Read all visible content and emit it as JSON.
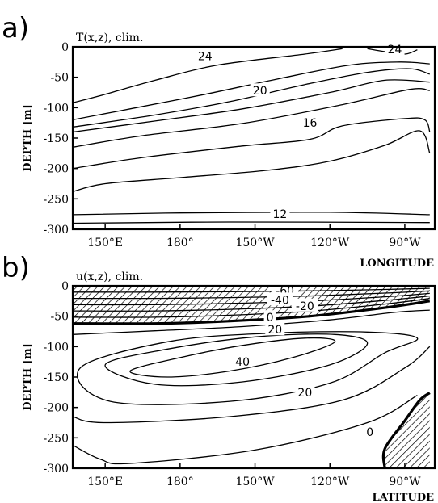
{
  "panel_a": {
    "letter": "a)"
  },
  "panel_b": {
    "letter": "b)"
  },
  "chart_data": [
    {
      "type": "contour",
      "title": "T(x,z),  clim.",
      "ylabel": "DEPTH [m]",
      "xlabel": "LONGITUDE",
      "x_tick_labels": [
        "150°E",
        "180°",
        "150°W",
        "120°W",
        "90°W"
      ],
      "y_ticks": [
        0,
        -50,
        -100,
        -150,
        -200,
        -250,
        -300
      ],
      "ylim": [
        -300,
        0
      ],
      "contour_labels": [
        {
          "text": "24",
          "lon": 190,
          "depth": -15
        },
        {
          "text": "24",
          "lon": 266,
          "depth": -4
        },
        {
          "text": "20",
          "lon": 212,
          "depth": -72
        },
        {
          "text": "16",
          "lon": 232,
          "depth": -125
        },
        {
          "text": "12",
          "lon": 220,
          "depth": -275
        }
      ],
      "isotherms": [
        {
          "level": 24,
          "points": [
            [
              137,
              -92
            ],
            [
              150,
              -78
            ],
            [
              170,
              -55
            ],
            [
              195,
              -30
            ],
            [
              230,
              -12
            ],
            [
              245,
              -3
            ]
          ]
        },
        {
          "level": 24,
          "points": [
            [
              255,
              -3
            ],
            [
              262,
              -8
            ],
            [
              270,
              -12
            ],
            [
              275,
              -5
            ]
          ]
        },
        {
          "level": 22,
          "points": [
            [
              137,
              -120
            ],
            [
              160,
              -102
            ],
            [
              190,
              -78
            ],
            [
              220,
              -52
            ],
            [
              248,
              -30
            ],
            [
              268,
              -25
            ],
            [
              280,
              -28
            ]
          ]
        },
        {
          "level": 20,
          "points": [
            [
              137,
              -132
            ],
            [
              170,
              -112
            ],
            [
              200,
              -90
            ],
            [
              230,
              -62
            ],
            [
              255,
              -42
            ],
            [
              272,
              -36
            ],
            [
              280,
              -45
            ]
          ]
        },
        {
          "level": 18,
          "points": [
            [
              137,
              -140
            ],
            [
              170,
              -122
            ],
            [
              205,
              -102
            ],
            [
              240,
              -75
            ],
            [
              262,
              -55
            ],
            [
              280,
              -58
            ]
          ]
        },
        {
          "level": 16,
          "points": [
            [
              137,
              -165
            ],
            [
              165,
              -146
            ],
            [
              205,
              -126
            ],
            [
              245,
              -95
            ],
            [
              272,
              -70
            ],
            [
              280,
              -72
            ]
          ]
        },
        {
          "level": 14,
          "points": [
            [
              137,
              -200
            ],
            [
              165,
              -182
            ],
            [
              205,
              -163
            ],
            [
              232,
              -152
            ],
            [
              245,
              -130
            ],
            [
              270,
              -118
            ],
            [
              278,
              -120
            ],
            [
              280,
              -140
            ]
          ]
        },
        {
          "level": 13,
          "points": [
            [
              137,
              -238
            ],
            [
              150,
              -225
            ],
            [
              180,
              -215
            ],
            [
              215,
              -203
            ],
            [
              240,
              -188
            ],
            [
              262,
              -162
            ],
            [
              276,
              -138
            ],
            [
              280,
              -175
            ]
          ]
        },
        {
          "level": 12,
          "points": [
            [
              137,
              -276
            ],
            [
              180,
              -273
            ],
            [
              240,
              -272
            ],
            [
              280,
              -276
            ]
          ]
        },
        {
          "level": 11,
          "points": [
            [
              137,
              -290
            ],
            [
              200,
              -288
            ],
            [
              280,
              -289
            ]
          ]
        }
      ]
    },
    {
      "type": "contour",
      "title": "u(x,z),  clim.",
      "ylabel": "DEPTH [m]",
      "xlabel": "LATITUDE",
      "x_tick_labels": [
        "150°E",
        "180°",
        "150°W",
        "120°W",
        "90°W"
      ],
      "y_ticks": [
        0,
        -50,
        -100,
        -150,
        -200,
        -250,
        -300
      ],
      "ylim": [
        -300,
        0
      ],
      "contour_labels": [
        {
          "text": "-60",
          "lon": 222,
          "depth": -8
        },
        {
          "text": "-40",
          "lon": 220,
          "depth": -23
        },
        {
          "text": "-20",
          "lon": 230,
          "depth": -33
        },
        {
          "text": "0",
          "lon": 216,
          "depth": -52
        },
        {
          "text": "20",
          "lon": 218,
          "depth": -72
        },
        {
          "text": "40",
          "lon": 205,
          "depth": -125
        },
        {
          "text": "20",
          "lon": 230,
          "depth": -175
        },
        {
          "text": "0",
          "lon": 256,
          "depth": -240
        }
      ],
      "isotachs": [
        {
          "level": 0,
          "points": [
            [
              137,
              -62
            ],
            [
              170,
              -62
            ],
            [
              200,
              -58
            ],
            [
              232,
              -50
            ],
            [
              262,
              -36
            ],
            [
              280,
              -25
            ]
          ]
        },
        {
          "level": 20,
          "points": [
            [
              137,
              -80
            ],
            [
              170,
              -74
            ],
            [
              205,
              -67
            ],
            [
              240,
              -56
            ],
            [
              265,
              -44
            ],
            [
              280,
              -40
            ]
          ]
        },
        {
          "level": 40,
          "points": [
            [
              160,
              -140
            ],
            [
              175,
              -150
            ],
            [
              200,
              -140
            ],
            [
              225,
              -118
            ],
            [
              242,
              -92
            ],
            [
              230,
              -86
            ],
            [
              205,
              -98
            ],
            [
              180,
              -118
            ],
            [
              160,
              -140
            ]
          ]
        },
        {
          "level": 30,
          "points": [
            [
              150,
              -130
            ],
            [
              170,
              -162
            ],
            [
              205,
              -158
            ],
            [
              240,
              -130
            ],
            [
              255,
              -95
            ],
            [
              242,
              -80
            ],
            [
              210,
              -84
            ],
            [
              175,
              -104
            ],
            [
              150,
              -130
            ]
          ]
        },
        {
          "level": 20,
          "points": [
            [
              140,
              -135
            ],
            [
              152,
              -190
            ],
            [
              200,
              -190
            ],
            [
              240,
              -160
            ],
            [
              262,
              -110
            ],
            [
              275,
              -86
            ],
            [
              255,
              -76
            ],
            [
              215,
              -78
            ],
            [
              175,
              -92
            ],
            [
              140,
              -135
            ]
          ]
        },
        {
          "level": 10,
          "points": [
            [
              137,
              -215
            ],
            [
              150,
              -225
            ],
            [
              200,
              -215
            ],
            [
              245,
              -188
            ],
            [
              270,
              -135
            ],
            [
              280,
              -100
            ]
          ]
        },
        {
          "level": 5,
          "points": [
            [
              137,
              -262
            ],
            [
              148,
              -285
            ],
            [
              160,
              -292
            ],
            [
              210,
              -270
            ],
            [
              255,
              -225
            ],
            [
              275,
              -180
            ]
          ]
        }
      ],
      "westward_regions": [
        {
          "name": "surface westward flow",
          "points": [
            [
              137,
              0
            ],
            [
              280,
              0
            ],
            [
              280,
              -25
            ],
            [
              262,
              -36
            ],
            [
              232,
              -50
            ],
            [
              200,
              -58
            ],
            [
              170,
              -62
            ],
            [
              137,
              -62
            ]
          ]
        },
        {
          "name": "deep eastern westward flow",
          "points": [
            [
              262,
              -300
            ],
            [
              262,
              -268
            ],
            [
              270,
              -222
            ],
            [
              276,
              -188
            ],
            [
              280,
              -176
            ],
            [
              280,
              -300
            ]
          ]
        }
      ]
    }
  ]
}
